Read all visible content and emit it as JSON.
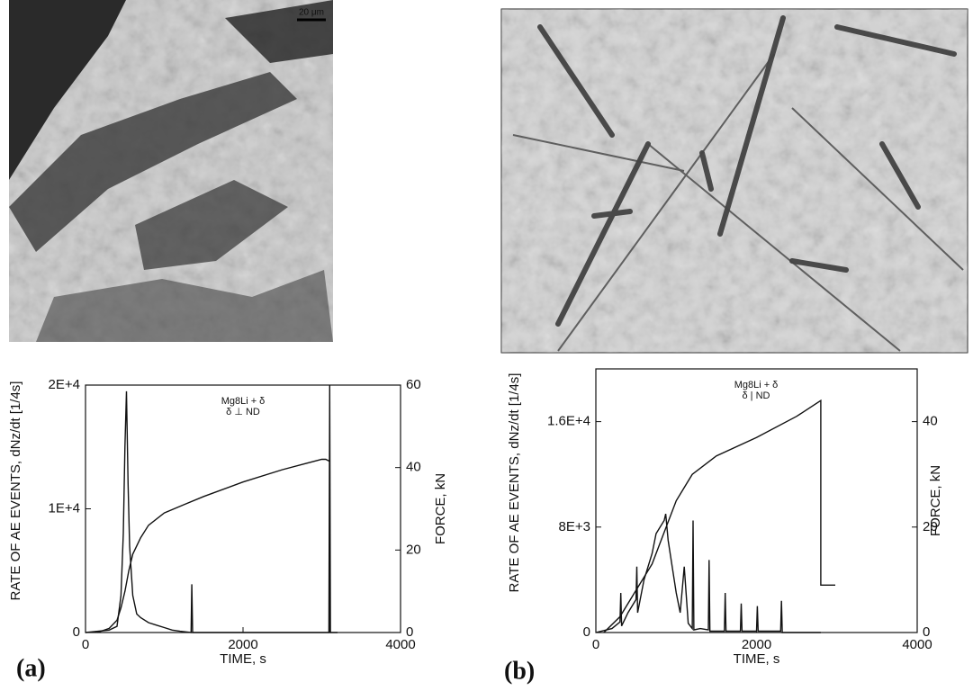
{
  "panels": [
    "(a)",
    "(b)"
  ],
  "micrographs": [
    {
      "scale": "20 μm"
    }
  ],
  "chart_data": [
    {
      "type": "line",
      "annotation": [
        "Mg8Li + δ",
        "δ ⊥ ND"
      ],
      "x_label": "TIME,  s",
      "y_label": "RATE OF AE EVENTS,  dNz/dt [1/4s]",
      "y2_label": "FORCE,  kN",
      "xlim": [
        0,
        4000
      ],
      "xticks": [
        0,
        2000,
        4000
      ],
      "ylim": [
        0,
        20000
      ],
      "yticks": [
        0,
        {
          "value": 10000,
          "label": "1E+4"
        },
        {
          "value": 20000,
          "label": "2E+4"
        }
      ],
      "y2lim": [
        0,
        60
      ],
      "y2ticks": [
        0,
        20,
        40,
        60
      ],
      "series": [
        {
          "color": "#111",
          "axis": "y",
          "x": [
            0,
            300,
            400,
            450,
            480,
            500,
            520,
            540,
            560,
            600,
            650,
            700,
            800,
            900,
            1000,
            1100,
            1200,
            1340,
            1350,
            1360,
            1500,
            3090,
            3100,
            3110,
            3200
          ],
          "values": [
            0,
            200,
            500,
            3000,
            8000,
            15000,
            19500,
            12000,
            7000,
            3000,
            1500,
            1200,
            800,
            600,
            400,
            200,
            100,
            0,
            3900,
            0,
            0,
            0,
            20000,
            0,
            0
          ]
        },
        {
          "color": "#111",
          "axis": "y2",
          "x": [
            150,
            300,
            400,
            450,
            500,
            550,
            600,
            700,
            800,
            1000,
            1250,
            1500,
            2000,
            2500,
            2800,
            3000,
            3050,
            3100,
            3100
          ],
          "values": [
            0,
            1,
            3,
            6,
            10,
            15,
            19,
            23,
            26,
            29,
            31,
            33,
            36.5,
            39.5,
            41,
            42,
            42,
            41.5,
            0
          ]
        }
      ]
    },
    {
      "type": "line",
      "annotation": [
        "Mg8Li + δ",
        "δ | ND"
      ],
      "x_label": "TIME,  s",
      "y_label": "RATE OF AE EVENTS,  dNz/dt [1/4s]",
      "y2_label": "FORCE,  kN",
      "xlim": [
        0,
        4000
      ],
      "xticks": [
        0,
        2000,
        4000
      ],
      "ylim": [
        0,
        20000
      ],
      "yticks": [
        0,
        {
          "value": 8000,
          "label": "8E+3"
        },
        {
          "value": 16000,
          "label": "1.6E+4"
        }
      ],
      "y2lim": [
        0,
        50
      ],
      "y2ticks": [
        0,
        20,
        40
      ],
      "series": [
        {
          "color": "#111",
          "axis": "y",
          "x": [
            0,
            200,
            300,
            310,
            320,
            400,
            500,
            510,
            520,
            600,
            700,
            750,
            800,
            850,
            870,
            900,
            950,
            1000,
            1050,
            1100,
            1150,
            1200,
            1210,
            1220,
            1300,
            1400,
            1410,
            1420,
            1600,
            1610,
            1620,
            1800,
            1810,
            1820,
            2000,
            2010,
            2020,
            2300,
            2310,
            2320,
            2800
          ],
          "values": [
            0,
            300,
            800,
            3000,
            500,
            1500,
            2500,
            5000,
            1500,
            4000,
            6000,
            7500,
            8000,
            8500,
            9000,
            7000,
            5000,
            3000,
            1500,
            5000,
            700,
            300,
            8500,
            200,
            300,
            200,
            5500,
            100,
            100,
            3000,
            100,
            100,
            2200,
            100,
            100,
            2000,
            100,
            100,
            2400,
            0,
            0
          ]
        },
        {
          "color": "#111",
          "axis": "y2",
          "x": [
            100,
            300,
            500,
            700,
            800,
            1000,
            1200,
            1500,
            2000,
            2500,
            2800,
            2800,
            2980
          ],
          "values": [
            0,
            3,
            8,
            13,
            17,
            25,
            30,
            33.5,
            37,
            41,
            44,
            9,
            9
          ]
        }
      ]
    }
  ]
}
